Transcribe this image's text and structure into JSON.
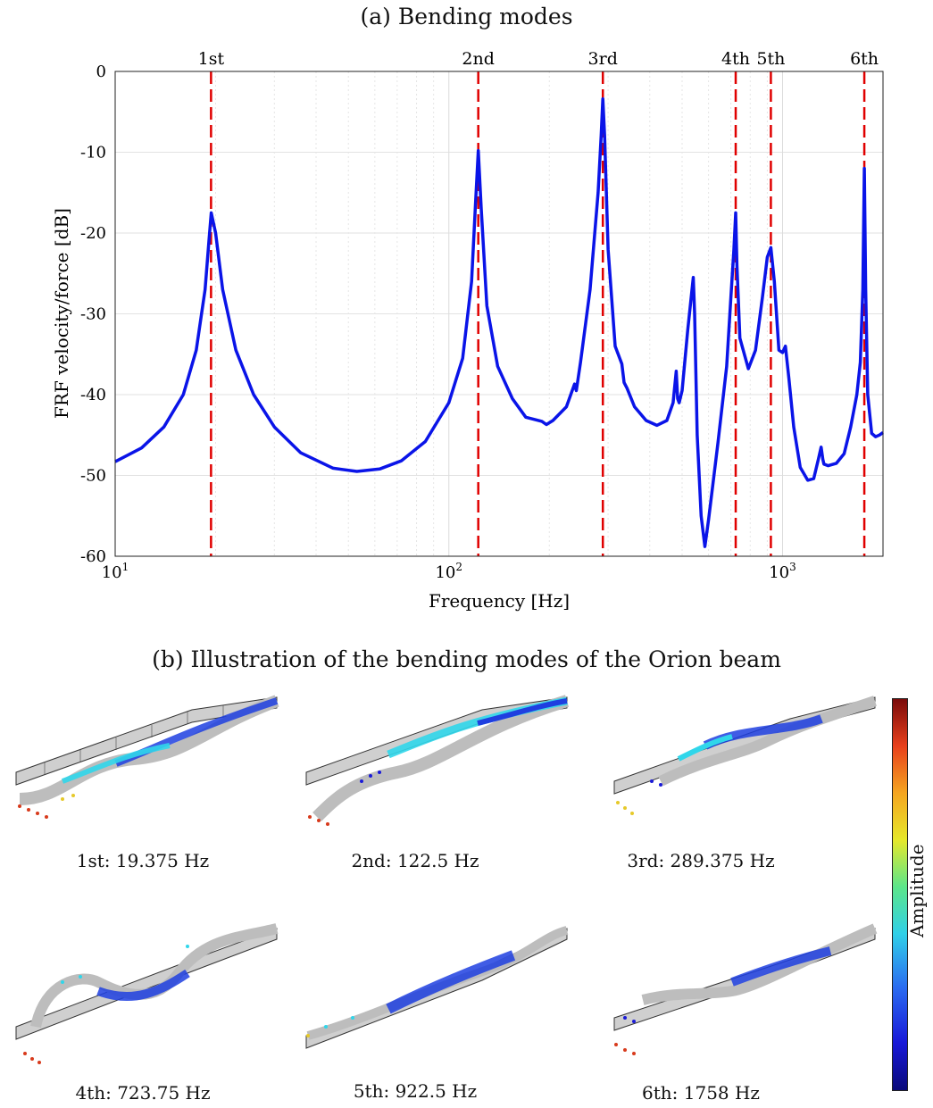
{
  "panel_a_title": "(a) Bending modes",
  "panel_b_title": "(b) Illustration of the bending modes of the Orion beam",
  "colorbar_label": "Amplitude",
  "chart_data": {
    "type": "line",
    "title": "(a) Bending modes",
    "xlabel": "Frequency [Hz]",
    "ylabel": "FRF velocity/force [dB]",
    "xscale": "log",
    "xlim": [
      10,
      2000
    ],
    "ylim": [
      -60,
      0
    ],
    "yticks": [
      0,
      -10,
      -20,
      -30,
      -40,
      -50,
      -60
    ],
    "ytick_labels": [
      "0",
      "-10",
      "-20",
      "-30",
      "-40",
      "-50",
      "-60"
    ],
    "xtick_labels": [
      {
        "value": 10,
        "base": "10",
        "exp": "1"
      },
      {
        "value": 100,
        "base": "10",
        "exp": "2"
      },
      {
        "value": 1000,
        "base": "10",
        "exp": "3"
      }
    ],
    "grid": true,
    "series": [
      {
        "color": "#0a14e8",
        "x": [
          10,
          12,
          14,
          16,
          17.5,
          18.6,
          19.1,
          19.4,
          20,
          21,
          23,
          26,
          30,
          36,
          45,
          53,
          62,
          72,
          85,
          100,
          110,
          117,
          120,
          122.5,
          125,
          130,
          140,
          155,
          170,
          190,
          196,
          205,
          225,
          238,
          241,
          248,
          265,
          280,
          286,
          289.4,
          293,
          300,
          315,
          330,
          335,
          342,
          360,
          390,
          420,
          450,
          470,
          480,
          485,
          490,
          500,
          520,
          540,
          545,
          555,
          570,
          585,
          600,
          640,
          680,
          700,
          715,
          723.75,
          730,
          745,
          790,
          830,
          870,
          900,
          922.5,
          945,
          975,
          1000,
          1020,
          1045,
          1080,
          1130,
          1190,
          1240,
          1280,
          1305,
          1320,
          1330,
          1370,
          1450,
          1530,
          1600,
          1670,
          1710,
          1740,
          1758,
          1775,
          1800,
          1850,
          1900,
          1950,
          2000
        ],
        "y": [
          -48.3,
          -46.6,
          -44,
          -40,
          -34.5,
          -27,
          -21,
          -17.5,
          -20,
          -27,
          -34.5,
          -40,
          -44,
          -47.2,
          -49.1,
          -49.5,
          -49.2,
          -48.2,
          -45.8,
          -41,
          -35.5,
          -26,
          -17,
          -9.8,
          -17,
          -29,
          -36.5,
          -40.5,
          -42.8,
          -43.3,
          -43.7,
          -43.2,
          -41.5,
          -38.7,
          -39.5,
          -36,
          -27,
          -15,
          -8,
          -3.4,
          -8,
          -22,
          -34,
          -36.2,
          -38.5,
          -39.2,
          -41.5,
          -43.2,
          -43.8,
          -43.2,
          -41,
          -37.1,
          -40.5,
          -41,
          -39.5,
          -32,
          -25.5,
          -30,
          -45,
          -55,
          -58.8,
          -55.5,
          -46,
          -36.5,
          -28,
          -22,
          -17.5,
          -24,
          -33,
          -36.8,
          -34.5,
          -28,
          -23,
          -21.8,
          -26,
          -34.5,
          -34.8,
          -34,
          -38,
          -44,
          -49,
          -50.6,
          -50.4,
          -48,
          -46.5,
          -48,
          -48.6,
          -48.8,
          -48.5,
          -47.3,
          -44,
          -40,
          -36,
          -27,
          -12,
          -27,
          -40,
          -44.8,
          -45.2,
          -45,
          -44.7
        ]
      }
    ],
    "vlines": {
      "color": "#e00000",
      "style": "dashed",
      "x": [
        19.375,
        122.5,
        289.375,
        723.75,
        922.5,
        1758
      ],
      "labels": [
        "1st",
        "2nd",
        "3rd",
        "4th",
        "5th",
        "6th"
      ]
    }
  },
  "modes": [
    {
      "caption": "1st: 19.375 Hz"
    },
    {
      "caption": "2nd: 122.5 Hz"
    },
    {
      "caption": "3rd: 289.375 Hz"
    },
    {
      "caption": "4th: 723.75 Hz"
    },
    {
      "caption": "5th: 922.5 Hz"
    },
    {
      "caption": "6th: 1758 Hz"
    }
  ],
  "colors": {
    "mesh": "#222222",
    "surface": "#d8d8d8",
    "low": "#1a1ad8",
    "mid": "#30d6ea",
    "high": "#d83a1c"
  }
}
